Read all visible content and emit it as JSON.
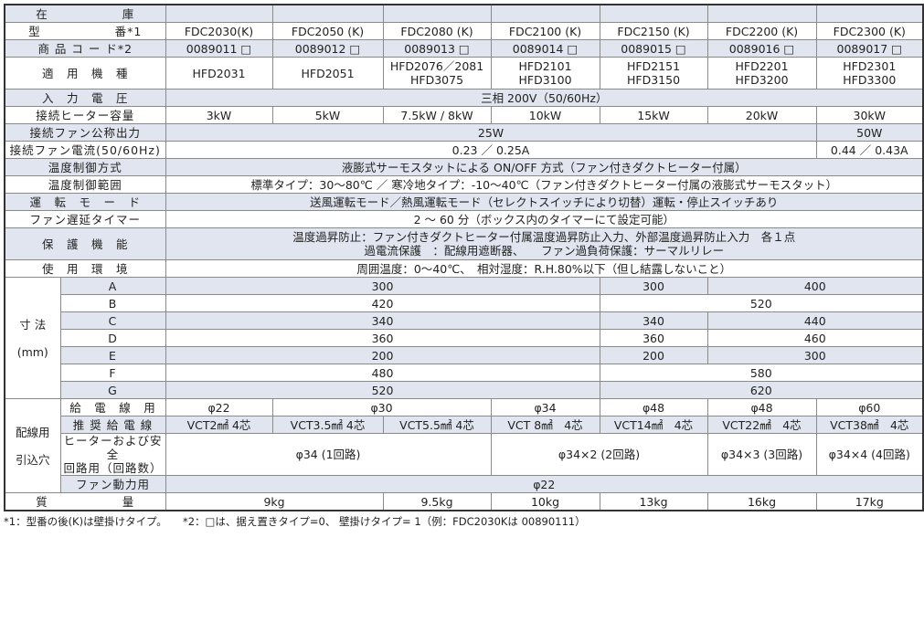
{
  "colors": {
    "shade": "#e0e5ef",
    "border": "#8a8a8a"
  },
  "rows": [
    {
      "label": "在　　　　　　庫",
      "shade": true,
      "cells": [
        [
          "",
          1
        ],
        [
          "",
          1
        ],
        [
          "",
          1
        ],
        [
          "",
          1
        ],
        [
          "",
          1
        ],
        [
          "",
          1
        ],
        [
          "",
          1
        ]
      ]
    },
    {
      "label": "型　　　　　　番*1",
      "shade": false,
      "cells": [
        [
          "FDC2030(K)",
          1
        ],
        [
          "FDC2050 (K)",
          1
        ],
        [
          "FDC2080 (K)",
          1
        ],
        [
          "FDC2100 (K)",
          1
        ],
        [
          "FDC2150 (K)",
          1
        ],
        [
          "FDC2200 (K)",
          1
        ],
        [
          "FDC2300 (K)",
          1
        ]
      ]
    },
    {
      "label": "商 品 コ ー ド*2",
      "shade": true,
      "cells": [
        [
          "0089011 □",
          1
        ],
        [
          "0089012 □",
          1
        ],
        [
          "0089013 □",
          1
        ],
        [
          "0089014 □",
          1
        ],
        [
          "0089015 □",
          1
        ],
        [
          "0089016 □",
          1
        ],
        [
          "0089017 □",
          1
        ]
      ]
    },
    {
      "label": "適　用　機　種",
      "shade": false,
      "tall": true,
      "cells": [
        [
          "HFD2031",
          1
        ],
        [
          "HFD2051",
          1
        ],
        [
          "HFD2076／2081\nHFD3075",
          1
        ],
        [
          "HFD2101\nHFD3100",
          1
        ],
        [
          "HFD2151\nHFD3150",
          1
        ],
        [
          "HFD2201\nHFD3200",
          1
        ],
        [
          "HFD2301\nHFD3300",
          1
        ]
      ]
    },
    {
      "label": "入　力　電　圧",
      "shade": true,
      "cells": [
        [
          "三相 200V（50/60Hz）",
          7
        ]
      ]
    },
    {
      "label": "接続ヒーター容量",
      "shade": false,
      "cells": [
        [
          "3kW",
          1
        ],
        [
          "5kW",
          1
        ],
        [
          "7.5kW / 8kW",
          1
        ],
        [
          "10kW",
          1
        ],
        [
          "15kW",
          1
        ],
        [
          "20kW",
          1
        ],
        [
          "30kW",
          1
        ]
      ]
    },
    {
      "label": "接続ファン公称出力",
      "shade": true,
      "cells": [
        [
          "25W",
          6
        ],
        [
          "50W",
          1
        ]
      ]
    },
    {
      "label": "接続ファン電流(50/60Hz)",
      "shade": false,
      "cells": [
        [
          "0.23 ／ 0.25A",
          6
        ],
        [
          "0.44 ／ 0.43A",
          1
        ]
      ]
    },
    {
      "label": "温度制御方式",
      "shade": true,
      "cells": [
        [
          "液膨式サーモスタットによる ON/OFF 方式（ファン付きダクトヒーター付属）",
          7
        ]
      ]
    },
    {
      "label": "温度制御範囲",
      "shade": false,
      "cells": [
        [
          "標準タイプ：30〜80℃ ／ 寒冷地タイプ：-10〜40℃（ファン付きダクトヒーター付属の液膨式サーモスタット）",
          7
        ]
      ]
    },
    {
      "label": "運　転　モ　ー　ド",
      "shade": true,
      "cells": [
        [
          "送風運転モード／熱風運転モード（セレクトスイッチにより切替）運転・停止スイッチあり",
          7
        ]
      ]
    },
    {
      "label": "ファン遅延タイマー",
      "shade": false,
      "cells": [
        [
          "2 〜 60 分（ボックス内のタイマーにて設定可能）",
          7
        ]
      ]
    },
    {
      "label": "保　護　機　能",
      "shade": true,
      "tall": true,
      "cells": [
        [
          "温度過昇防止：ファン付きダクトヒーター付属温度過昇防止入力、外部温度過昇防止入力　各１点\n過電流保護　：配線用遮断器、　　ファン過負荷保護：サーマルリレー",
          7
        ]
      ]
    },
    {
      "label": "使　用　環　境",
      "shade": false,
      "cells": [
        [
          "周囲温度：0〜40℃、　相対湿度：R.H.80%以下（但し結露しないこと）",
          7
        ]
      ]
    }
  ],
  "dimensions": {
    "label": "寸 法\n\n(mm)",
    "rows": [
      {
        "label": "A",
        "shade": true,
        "cells": [
          [
            "300",
            4
          ],
          [
            "300",
            1
          ],
          [
            "400",
            2
          ]
        ]
      },
      {
        "label": "B",
        "shade": false,
        "cells": [
          [
            "420",
            4
          ],
          [
            "520",
            3
          ]
        ]
      },
      {
        "label": "C",
        "shade": true,
        "cells": [
          [
            "340",
            4
          ],
          [
            "340",
            1
          ],
          [
            "440",
            2
          ]
        ]
      },
      {
        "label": "D",
        "shade": false,
        "cells": [
          [
            "360",
            4
          ],
          [
            "360",
            1
          ],
          [
            "460",
            2
          ]
        ]
      },
      {
        "label": "E",
        "shade": true,
        "cells": [
          [
            "200",
            4
          ],
          [
            "200",
            1
          ],
          [
            "300",
            2
          ]
        ]
      },
      {
        "label": "F",
        "shade": false,
        "cells": [
          [
            "480",
            4
          ],
          [
            "580",
            3
          ]
        ]
      },
      {
        "label": "G",
        "shade": true,
        "cells": [
          [
            "520",
            4
          ],
          [
            "620",
            3
          ]
        ]
      }
    ]
  },
  "wiring": {
    "label": "配線用\n\n引込穴",
    "rows": [
      {
        "label": "給　電　線　用",
        "shade": false,
        "cells": [
          [
            "φ22",
            1
          ],
          [
            "φ30",
            2
          ],
          [
            "φ34",
            1
          ],
          [
            "φ48",
            1
          ],
          [
            "φ48",
            1
          ],
          [
            "φ60",
            1
          ]
        ]
      },
      {
        "label": "推 奨 給 電 線",
        "shade": true,
        "cells": [
          [
            "VCT2㎟ 4芯",
            1
          ],
          [
            "VCT3.5㎟ 4芯",
            1
          ],
          [
            "VCT5.5㎟ 4芯",
            1
          ],
          [
            "VCT 8㎟　4芯",
            1
          ],
          [
            "VCT14㎟　4芯",
            1
          ],
          [
            "VCT22㎟　4芯",
            1
          ],
          [
            "VCT38㎟　4芯",
            1
          ]
        ]
      },
      {
        "label": "ヒーターおよび安全\n回路用（回路数）",
        "shade": false,
        "tall": true,
        "cells": [
          [
            "φ34 (1回路)",
            3
          ],
          [
            "φ34×2 (2回路)",
            2
          ],
          [
            "φ34×3 (3回路)",
            1
          ],
          [
            "φ34×4 (4回路)",
            1
          ]
        ]
      },
      {
        "label": "ファン動力用",
        "shade": true,
        "cells": [
          [
            "φ22",
            7
          ]
        ]
      }
    ]
  },
  "mass": {
    "label": "質　　　　　　量",
    "cells": [
      [
        "9kg",
        2
      ],
      [
        "9.5kg",
        1
      ],
      [
        "10kg",
        1
      ],
      [
        "13kg",
        1
      ],
      [
        "16kg",
        1
      ],
      [
        "17kg",
        1
      ]
    ]
  },
  "footnote": "*1：型番の後(K)は壁掛けタイプ。　　*2：□は、据え置きタイプ=0、 壁掛けタイプ= 1（例：FDC2030Kは 00890111）"
}
